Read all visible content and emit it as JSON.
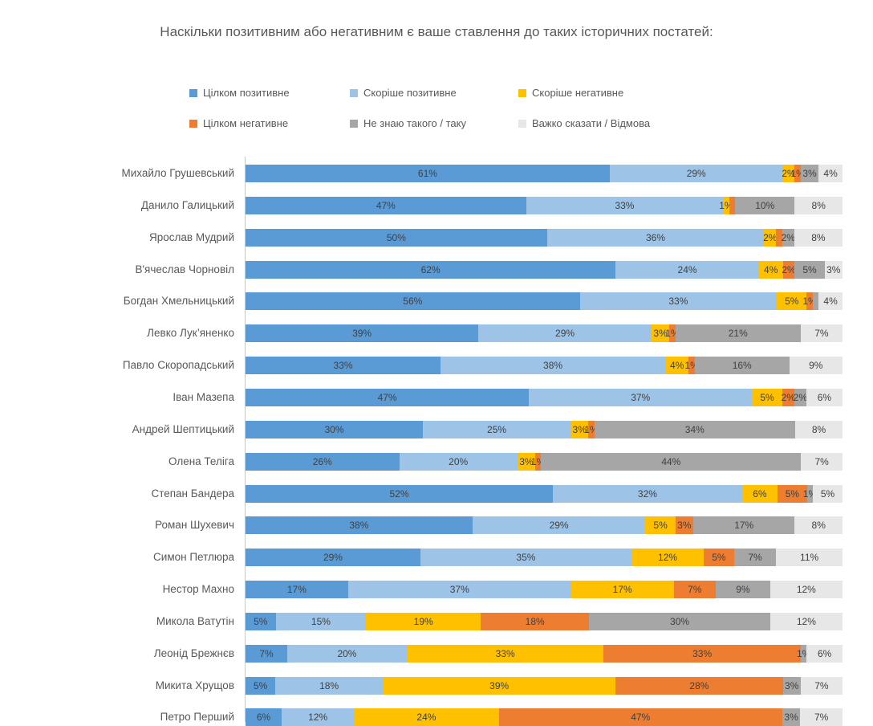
{
  "title": "Наскільки позитивним або негативним є ваше ставлення до таких історичних постатей:",
  "chart_data": {
    "type": "bar",
    "stacked": true,
    "horizontal": true,
    "title": "Наскільки позитивним або негативним є ваше ставлення до таких історичних постатей:",
    "legend_position": "top",
    "value_axis_range": [
      0,
      100
    ],
    "gridlines": false,
    "series": [
      {
        "name": "Цілком позитивне",
        "color": "#5B9BD5"
      },
      {
        "name": "Скоріше позитивне",
        "color": "#9DC3E6"
      },
      {
        "name": "Скоріше негативне",
        "color": "#FFC000"
      },
      {
        "name": "Цілком негативне",
        "color": "#ED7D31"
      },
      {
        "name": "Не знаю такого / таку",
        "color": "#A6A6A6"
      },
      {
        "name": "Важко сказати / Відмова",
        "color": "#E7E7E7"
      }
    ],
    "categories": [
      "Михайло Грушевський",
      "Данило Галицький",
      "Ярослав Мудрий",
      "В'ячеслав Чорновіл",
      "Богдан Хмельницький",
      "Левко Лук’яненко",
      "Павло Скоропадський",
      "Іван Мазепа",
      "Андрей Шептицький",
      "Олена Теліга",
      "Степан Бандера",
      "Роман Шухевич",
      "Симон Петлюра",
      "Нестор Махно",
      "Микола Ватутін",
      "Леонід Брежнєв",
      "Микита Хрущов",
      "Петро Перший"
    ],
    "values": [
      [
        61,
        29,
        2,
        1,
        3,
        4
      ],
      [
        47,
        33,
        1,
        1,
        10,
        8
      ],
      [
        50,
        36,
        2,
        1,
        2,
        8
      ],
      [
        62,
        24,
        4,
        2,
        5,
        3
      ],
      [
        56,
        33,
        5,
        1,
        1,
        4
      ],
      [
        39,
        29,
        3,
        1,
        21,
        7
      ],
      [
        33,
        38,
        4,
        1,
        16,
        9
      ],
      [
        47,
        37,
        5,
        2,
        2,
        6
      ],
      [
        30,
        25,
        3,
        1,
        34,
        8
      ],
      [
        26,
        20,
        3,
        1,
        44,
        7
      ],
      [
        52,
        32,
        6,
        5,
        1,
        5
      ],
      [
        38,
        29,
        5,
        3,
        17,
        8
      ],
      [
        29,
        35,
        12,
        5,
        7,
        11
      ],
      [
        17,
        37,
        17,
        7,
        9,
        12
      ],
      [
        5,
        15,
        19,
        18,
        30,
        12
      ],
      [
        7,
        20,
        33,
        33,
        1,
        6
      ],
      [
        5,
        18,
        39,
        28,
        3,
        7
      ],
      [
        6,
        12,
        24,
        47,
        3,
        7
      ]
    ],
    "labels": [
      [
        "61%",
        "29%",
        "2%",
        "1%",
        "3%",
        "4%"
      ],
      [
        "47%",
        "33%",
        "1%",
        "",
        "10%",
        "8%"
      ],
      [
        "50%",
        "36%",
        "2%",
        "",
        "2%",
        "8%"
      ],
      [
        "62%",
        "24%",
        "4%",
        "2%",
        "5%",
        "3%"
      ],
      [
        "56%",
        "33%",
        "5%",
        "1%",
        "",
        "4%"
      ],
      [
        "39%",
        "29%",
        "3%",
        "1%",
        "21%",
        "7%"
      ],
      [
        "33%",
        "38%",
        "4%",
        "1%",
        "16%",
        "9%"
      ],
      [
        "47%",
        "37%",
        "5%",
        "2%",
        "2%",
        "6%"
      ],
      [
        "30%",
        "25%",
        "3%",
        "1%",
        "34%",
        "8%"
      ],
      [
        "26%",
        "20%",
        "3%",
        "1%",
        "44%",
        "7%"
      ],
      [
        "52%",
        "32%",
        "6%",
        "5%",
        "1%",
        "5%"
      ],
      [
        "38%",
        "29%",
        "5%",
        "3%",
        "17%",
        "8%"
      ],
      [
        "29%",
        "35%",
        "12%",
        "5%",
        "7%",
        "11%"
      ],
      [
        "17%",
        "37%",
        "17%",
        "7%",
        "9%",
        "12%"
      ],
      [
        "5%",
        "15%",
        "19%",
        "18%",
        "30%",
        "12%"
      ],
      [
        "7%",
        "20%",
        "33%",
        "33%",
        "1%",
        "6%"
      ],
      [
        "5%",
        "18%",
        "39%",
        "28%",
        "3%",
        "7%"
      ],
      [
        "6%",
        "12%",
        "24%",
        "47%",
        "3%",
        "7%"
      ]
    ]
  },
  "layout_hints": {
    "text_color_labels": "#404040",
    "text_color_axis": "#595959"
  }
}
